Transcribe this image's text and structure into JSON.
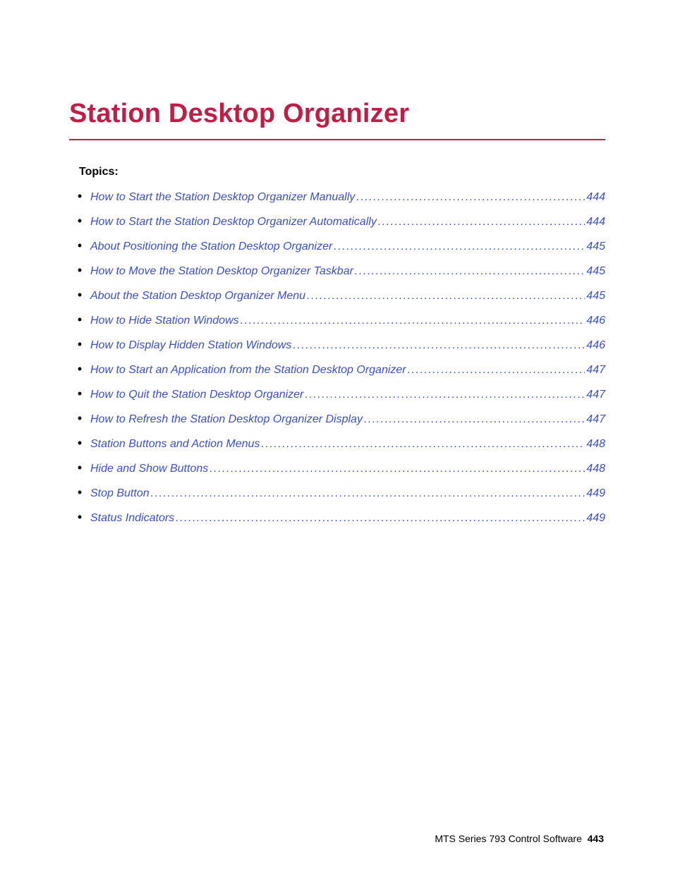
{
  "colors": {
    "heading": "#bd1f47",
    "link": "#3b4fc4",
    "rule": "#bd1f47",
    "text": "#000000",
    "background": "#ffffff"
  },
  "heading": "Station Desktop Organizer",
  "topics_label": "Topics:",
  "toc": [
    {
      "label": "How to Start the Station Desktop Organizer Manually",
      "page": "444"
    },
    {
      "label": "How to Start the Station Desktop Organizer Automatically",
      "page": "444"
    },
    {
      "label": "About Positioning the Station Desktop Organizer",
      "page": "445"
    },
    {
      "label": "How to Move the Station Desktop Organizer Taskbar",
      "page": "445"
    },
    {
      "label": "About the Station Desktop Organizer Menu",
      "page": "445"
    },
    {
      "label": "How to Hide Station Windows",
      "page": "446"
    },
    {
      "label": "How to Display Hidden Station Windows",
      "page": "446"
    },
    {
      "label": "How to Start an Application from the Station Desktop Organizer",
      "page": "447"
    },
    {
      "label": "How to Quit the Station Desktop Organizer",
      "page": "447"
    },
    {
      "label": "How to Refresh the Station Desktop Organizer Display",
      "page": "447"
    },
    {
      "label": "Station Buttons and Action Menus",
      "page": "448"
    },
    {
      "label": "Hide and Show Buttons",
      "page": "448"
    },
    {
      "label": "Stop Button",
      "page": "449"
    },
    {
      "label": "Status Indicators",
      "page": "449"
    }
  ],
  "footer": {
    "product": "MTS Series 793 Control Software",
    "page_number": "443"
  }
}
